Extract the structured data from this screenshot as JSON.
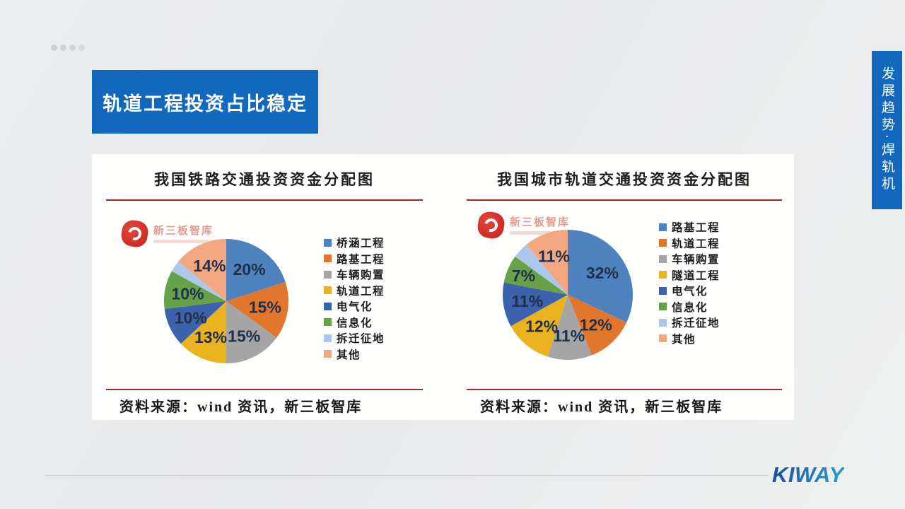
{
  "slide": {
    "banner_title": "轨道工程投资占比稳定",
    "side_tab_title": "发展趋势·焊轨机",
    "brand_logo": "KIWAY",
    "accent_blue": "#1168bd",
    "divider_red": "#9e2b24"
  },
  "chart_data": [
    {
      "type": "pie",
      "title": "我国铁路交通投资资金分配图",
      "watermark": "新三板智库",
      "source": "资料来源：wind 资讯，新三板智库",
      "legend_position": "right",
      "slices": [
        {
          "label": "桥涵工程",
          "value": 20,
          "display": "20%",
          "color": "#4d82be"
        },
        {
          "label": "路基工程",
          "value": 15,
          "display": "15%",
          "color": "#e2762d"
        },
        {
          "label": "车辆购置",
          "value": 15,
          "display": "15%",
          "color": "#a5a5a5"
        },
        {
          "label": "轨道工程",
          "value": 13,
          "display": "13%",
          "color": "#eab31e"
        },
        {
          "label": "电气化",
          "value": 10,
          "display": "10%",
          "color": "#3c62ab"
        },
        {
          "label": "信息化",
          "value": 10,
          "display": "10%",
          "color": "#68a248"
        },
        {
          "label": "拆迁征地",
          "value": 3,
          "display": "",
          "color": "#abc8ea"
        },
        {
          "label": "其他",
          "value": 14,
          "display": "14%",
          "color": "#f3a682"
        }
      ]
    },
    {
      "type": "pie",
      "title": "我国城市轨道交通投资资金分配图",
      "watermark": "新三板智库",
      "source": "资料来源：wind 资讯，新三板智库",
      "legend_position": "right",
      "slices": [
        {
          "label": "路基工程",
          "value": 32,
          "display": "32%",
          "color": "#4d82be"
        },
        {
          "label": "轨道工程",
          "value": 12,
          "display": "12%",
          "color": "#e2762d"
        },
        {
          "label": "车辆购置",
          "value": 11,
          "display": "11%",
          "color": "#a5a5a5"
        },
        {
          "label": "隧道工程",
          "value": 12,
          "display": "12%",
          "color": "#eab31e"
        },
        {
          "label": "电气化",
          "value": 11,
          "display": "11%",
          "color": "#3c62ab"
        },
        {
          "label": "信息化",
          "value": 7,
          "display": "7%",
          "color": "#68a248"
        },
        {
          "label": "拆迁征地",
          "value": 4,
          "display": "",
          "color": "#abc8ea"
        },
        {
          "label": "其他",
          "value": 11,
          "display": "11%",
          "color": "#f3a682"
        }
      ]
    }
  ]
}
